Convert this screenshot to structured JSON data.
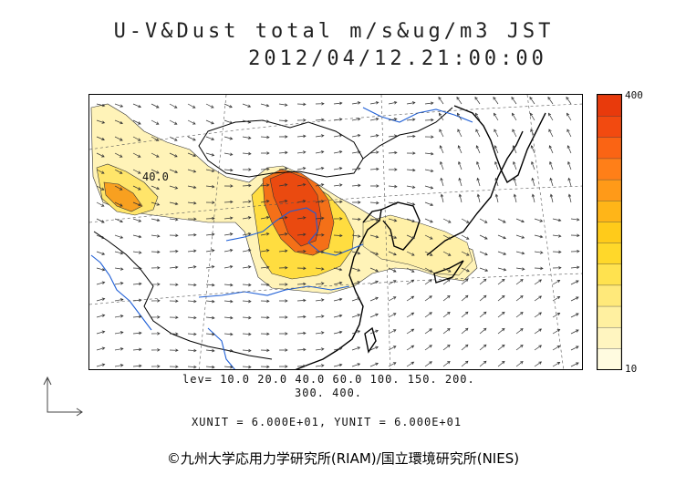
{
  "title": {
    "line1": "U-V&Dust total m/s&ug/m3 JST",
    "line2": "2012/04/12.21:00:00"
  },
  "colorbar": {
    "max_label": "400",
    "min_label": "10",
    "colors": [
      "#fffbe0",
      "#fff5c0",
      "#fff0a0",
      "#ffe97a",
      "#ffe24f",
      "#ffd82a",
      "#ffcb1a",
      "#ffb518",
      "#ff9a18",
      "#ff7f18",
      "#fa6414",
      "#f24a10",
      "#e83a0c"
    ]
  },
  "contour_label": "40.0",
  "legend": {
    "lev_line1": "lev= 10.0 20.0 40.0 60.0 100. 150. 200.",
    "lev_line2": "300. 400."
  },
  "units_text": "XUNIT = 6.000E+01, YUNIT = 6.000E+01",
  "copyright": "©九州大学応用力学研究所(RIAM)/国立環境研究所(NIES)",
  "colors": {
    "dust_low": "#fff2b0",
    "dust_mid": "#ffd21e",
    "dust_high": "#ee4a0e",
    "river": "#1f5fd6",
    "coast": "#000000",
    "border": "#000000",
    "wind": "#333333"
  },
  "icons": [
    "reference-vector-icon"
  ]
}
